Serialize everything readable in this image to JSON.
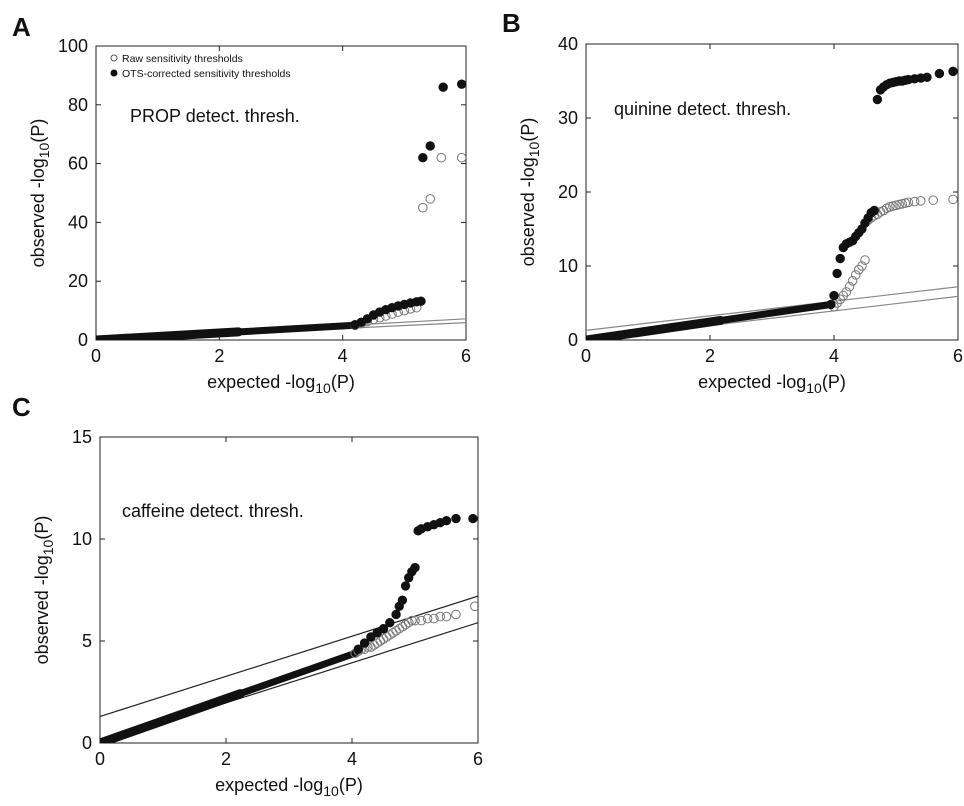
{
  "chart_data": [
    {
      "panel": "A",
      "type": "scatter",
      "annotation": "PROP detect.  thresh.",
      "xlabel": "expected -log10(P)",
      "ylabel": "observed -log10(P)",
      "xlim": [
        0,
        6
      ],
      "ylim": [
        0,
        100
      ],
      "xticks": [
        "0",
        "2",
        "4",
        "6"
      ],
      "yticks": [
        "0",
        "20",
        "40",
        "60",
        "80",
        "100"
      ],
      "legend": {
        "position": "top-left",
        "entries": [
          "Raw sensitivity thresholds",
          "OTS-corrected sensitivity thresholds"
        ]
      },
      "ci_lines": [
        {
          "x": [
            0,
            6
          ],
          "y": [
            0.3,
            7.2
          ]
        },
        {
          "x": [
            0,
            6
          ],
          "y": [
            0,
            5.9
          ]
        }
      ],
      "series": [
        {
          "name": "Raw sensitivity thresholds",
          "marker": "open-circle",
          "x": [
            4.2,
            4.3,
            4.4,
            4.5,
            4.6,
            4.7,
            4.8,
            4.9,
            5.0,
            5.1,
            5.2,
            5.3,
            5.42,
            5.6,
            5.93
          ],
          "y": [
            5.0,
            5.6,
            6.3,
            7.0,
            7.6,
            8.2,
            8.8,
            9.5,
            10.0,
            10.6,
            11.0,
            45,
            48,
            62,
            62
          ]
        },
        {
          "name": "OTS-corrected sensitivity thresholds",
          "marker": "filled-circle",
          "x": [
            4.2,
            4.3,
            4.4,
            4.5,
            4.6,
            4.7,
            4.8,
            4.9,
            5.0,
            5.1,
            5.2,
            5.27,
            5.3,
            5.42,
            5.63,
            5.93
          ],
          "y": [
            5.2,
            6.0,
            7.2,
            8.5,
            9.5,
            10.3,
            11.0,
            11.6,
            12.1,
            12.6,
            13.0,
            13.2,
            62,
            66,
            86,
            87
          ]
        }
      ],
      "dense_band": {
        "x": [
          0,
          4.2
        ],
        "y": [
          0,
          5.0
        ]
      }
    },
    {
      "panel": "B",
      "type": "scatter",
      "annotation": "quinine detect.  thresh.",
      "xlabel": "expected -log10(P)",
      "ylabel": "observed -log10(P)",
      "xlim": [
        0,
        6
      ],
      "ylim": [
        0,
        40
      ],
      "xticks": [
        "0",
        "2",
        "4",
        "6"
      ],
      "yticks": [
        "0",
        "10",
        "20",
        "30",
        "40"
      ],
      "ci_lines": [
        {
          "x": [
            0,
            6
          ],
          "y": [
            1.3,
            7.2
          ]
        },
        {
          "x": [
            0,
            6
          ],
          "y": [
            0,
            5.9
          ]
        }
      ],
      "series": [
        {
          "name": "Raw sensitivity thresholds",
          "marker": "open-circle",
          "x": [
            4.0,
            4.05,
            4.1,
            4.15,
            4.2,
            4.25,
            4.3,
            4.35,
            4.4,
            4.45,
            4.5,
            4.55,
            4.6,
            4.65,
            4.7,
            4.75,
            4.8,
            4.85,
            4.9,
            4.95,
            5.0,
            5.05,
            5.1,
            5.15,
            5.2,
            5.3,
            5.4,
            5.6,
            5.92
          ],
          "y": [
            4.5,
            5.0,
            5.5,
            6.0,
            6.5,
            7.2,
            8.0,
            8.8,
            9.5,
            10.0,
            10.8,
            16.2,
            16.5,
            16.8,
            17.0,
            17.3,
            17.5,
            17.8,
            18.0,
            18.1,
            18.2,
            18.3,
            18.4,
            18.5,
            18.6,
            18.7,
            18.8,
            18.9,
            19.0
          ]
        },
        {
          "name": "OTS-corrected sensitivity thresholds",
          "marker": "filled-circle",
          "x": [
            3.95,
            4.0,
            4.05,
            4.1,
            4.15,
            4.2,
            4.25,
            4.3,
            4.35,
            4.4,
            4.45,
            4.5,
            4.55,
            4.6,
            4.65,
            4.7,
            4.75,
            4.8,
            4.85,
            4.9,
            4.95,
            5.0,
            5.05,
            5.1,
            5.15,
            5.2,
            5.3,
            5.4,
            5.5,
            5.7,
            5.92
          ],
          "y": [
            4.8,
            6.0,
            9.0,
            11.0,
            12.5,
            13.0,
            13.2,
            13.4,
            14.0,
            14.5,
            15.0,
            15.8,
            16.5,
            17.2,
            17.5,
            32.5,
            33.8,
            34.2,
            34.5,
            34.7,
            34.8,
            34.9,
            35.0,
            35.0,
            35.1,
            35.2,
            35.3,
            35.4,
            35.5,
            36.0,
            36.3
          ]
        }
      ],
      "dense_band": {
        "x": [
          0,
          3.95
        ],
        "y": [
          0,
          4.8
        ]
      }
    },
    {
      "panel": "C",
      "type": "scatter",
      "annotation": "caffeine detect.  thresh.",
      "xlabel": "expected -log10(P)",
      "ylabel": "observed -log10(P)",
      "xlim": [
        0,
        6
      ],
      "ylim": [
        0,
        15
      ],
      "xticks": [
        "0",
        "2",
        "4",
        "6"
      ],
      "yticks": [
        "0",
        "5",
        "10",
        "15"
      ],
      "ci_lines": [
        {
          "x": [
            0,
            6
          ],
          "y": [
            1.3,
            7.2
          ]
        },
        {
          "x": [
            0,
            6
          ],
          "y": [
            0,
            5.9
          ]
        }
      ],
      "series": [
        {
          "name": "Raw sensitivity thresholds",
          "marker": "open-circle",
          "x": [
            4.05,
            4.1,
            4.15,
            4.2,
            4.25,
            4.3,
            4.35,
            4.4,
            4.45,
            4.5,
            4.55,
            4.6,
            4.65,
            4.7,
            4.75,
            4.8,
            4.85,
            4.9,
            4.95,
            5.0,
            5.1,
            5.2,
            5.3,
            5.4,
            5.5,
            5.65,
            5.95
          ],
          "y": [
            4.4,
            4.5,
            4.6,
            4.6,
            4.7,
            4.7,
            4.8,
            4.9,
            5.0,
            5.1,
            5.2,
            5.3,
            5.4,
            5.5,
            5.6,
            5.7,
            5.8,
            5.9,
            6.0,
            6.0,
            6.0,
            6.1,
            6.1,
            6.2,
            6.2,
            6.3,
            6.7
          ]
        },
        {
          "name": "OTS-corrected sensitivity thresholds",
          "marker": "filled-circle",
          "x": [
            4.1,
            4.2,
            4.3,
            4.4,
            4.5,
            4.6,
            4.7,
            4.75,
            4.8,
            4.85,
            4.9,
            4.95,
            5.0,
            5.05,
            5.1,
            5.2,
            5.3,
            5.4,
            5.5,
            5.65,
            5.92
          ],
          "y": [
            4.6,
            4.9,
            5.2,
            5.4,
            5.6,
            5.9,
            6.3,
            6.7,
            7.0,
            7.7,
            8.1,
            8.4,
            8.6,
            10.4,
            10.5,
            10.6,
            10.7,
            10.8,
            10.9,
            11.0,
            11.0
          ]
        }
      ],
      "dense_band": {
        "x": [
          0,
          4.05
        ],
        "y": [
          0,
          4.4
        ]
      }
    }
  ]
}
